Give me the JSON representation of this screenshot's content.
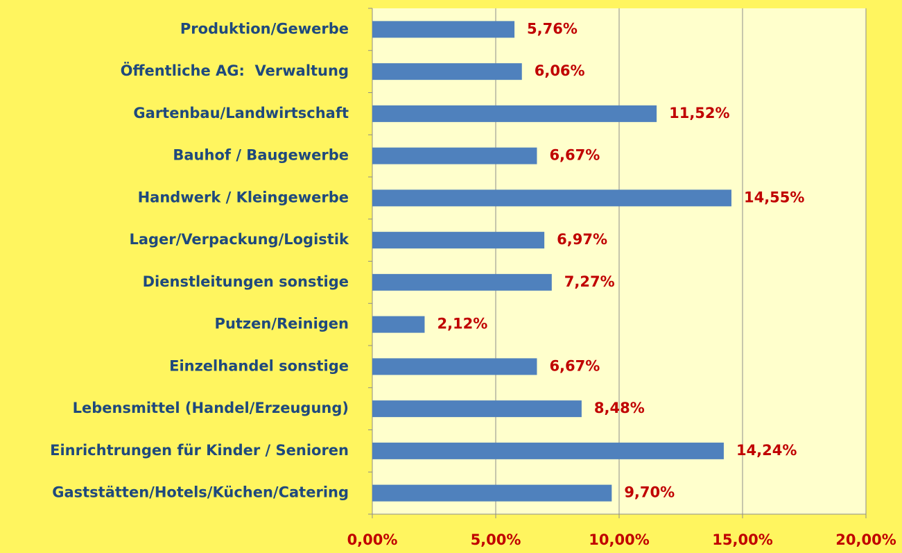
{
  "chart_data": {
    "type": "bar",
    "orientation": "horizontal",
    "categories": [
      "Produktion/Gewerbe",
      "Öffentliche AG:  Verwaltung",
      "Gartenbau/Landwirtschaft",
      "Bauhof / Baugewerbe",
      "Handwerk / Kleingewerbe",
      "Lager/Verpackung/Logistik",
      "Dienstleitungen sonstige",
      "Putzen/Reinigen",
      "Einzelhandel sonstige",
      "Lebensmittel (Handel/Erzeugung)",
      "Einrichtrungen für Kinder / Senioren",
      "Gaststätten/Hotels/Küchen/Catering"
    ],
    "values": [
      5.76,
      6.06,
      11.52,
      6.67,
      14.55,
      6.97,
      7.27,
      2.12,
      6.67,
      8.48,
      14.24,
      9.7
    ],
    "value_labels": [
      "5,76%",
      "6,06%",
      "11,52%",
      "6,67%",
      "14,55%",
      "6,97%",
      "7,27%",
      "2,12%",
      "6,67%",
      "8,48%",
      "14,24%",
      "9,70%"
    ],
    "color": "#4f81bd",
    "xlim": [
      0,
      20
    ],
    "xticks": [
      {
        "value": 0,
        "label": "0,00%"
      },
      {
        "value": 5,
        "label": "5,00%"
      },
      {
        "value": 10,
        "label": "10,00%"
      },
      {
        "value": 15,
        "label": "15,00%"
      },
      {
        "value": 20,
        "label": "20,00%"
      }
    ],
    "grid": true
  }
}
